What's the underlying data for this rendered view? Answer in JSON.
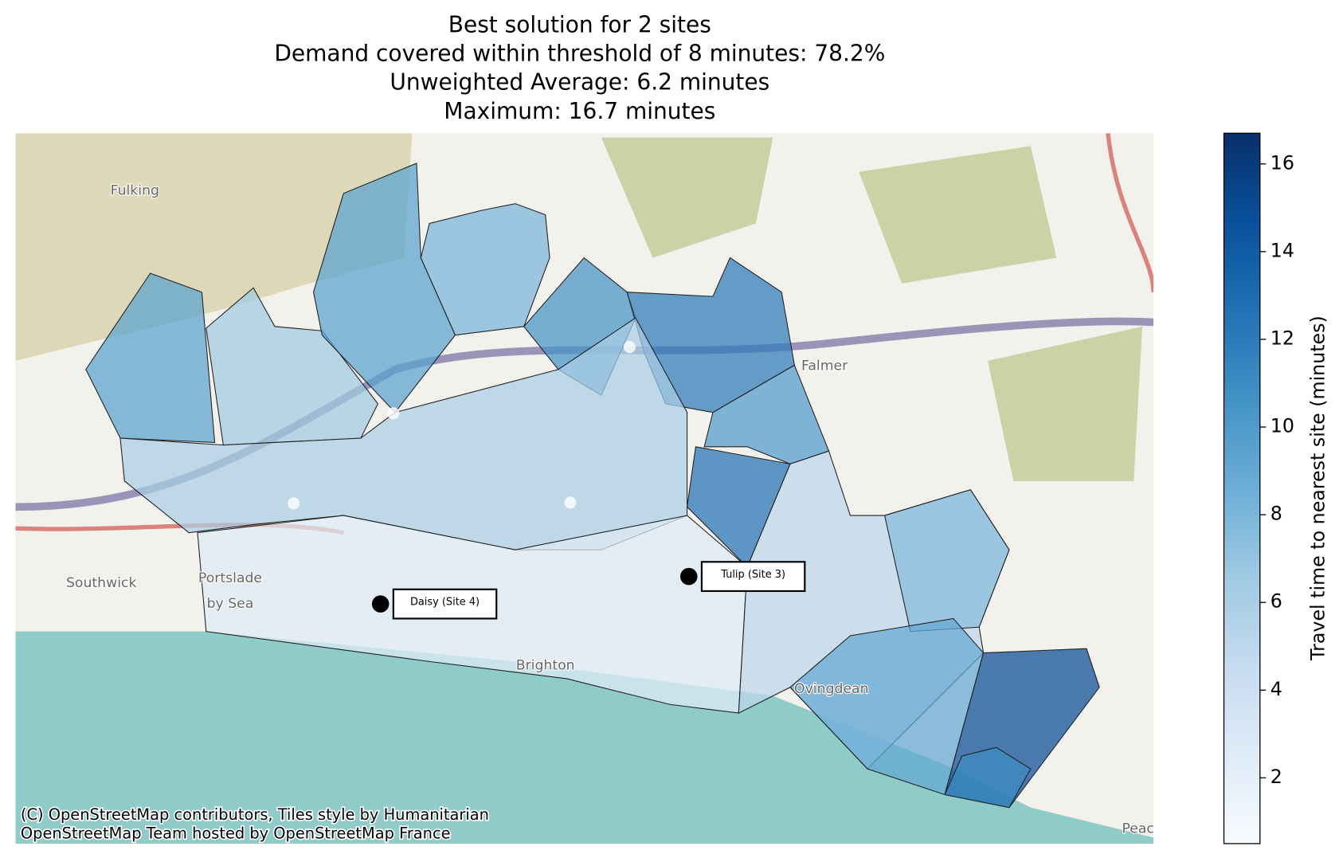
{
  "chart_data": {
    "type": "choropleth",
    "title": [
      "Best solution for 2 sites",
      "Demand covered within threshold of 8 minutes: 78.2%",
      "Unweighted Average: 6.2 minutes",
      "Maximum: 16.7 minutes"
    ],
    "values": [
      9.5,
      6.5,
      9.5,
      8,
      10.5,
      12,
      10,
      12.5,
      6,
      2.5,
      5,
      7.5,
      9,
      15,
      11
    ],
    "sites": [
      "Daisy (Site 4)",
      "Tulip (Site 3)"
    ],
    "colorbar": {
      "label": "Travel time to nearest site (minutes)",
      "cmap": "Blues",
      "lim": [
        0.5,
        16.7
      ],
      "ticks": [
        2,
        4,
        6,
        8,
        10,
        12,
        14,
        16
      ]
    },
    "basemap_labels": [
      "Fulking",
      "Southwick",
      "Portslade",
      "by Sea",
      "Brighton",
      "Falmer",
      "Ovingdean",
      "Peac"
    ],
    "attribution": [
      "(C) OpenStreetMap contributors, Tiles style by Humanitarian",
      "OpenStreetMap Team hosted by OpenStreetMap France"
    ]
  }
}
